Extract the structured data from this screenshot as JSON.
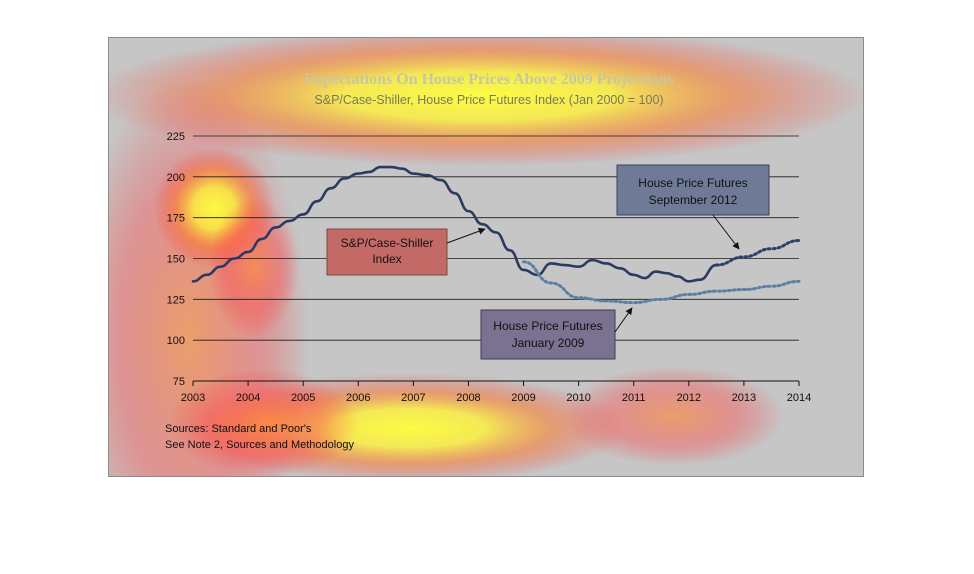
{
  "colors": {
    "main_line": "#2b3a60",
    "jan2009_line": "#5d7fa3",
    "sep2012_line": "#2c3f66",
    "grid": "#1b1b1b",
    "title": "#c8c8a0",
    "subtitle": "#7a7a58"
  },
  "chart_data": {
    "type": "line",
    "title": "Expectations On House Prices Above 2009 Projections",
    "subtitle": "S&P/Case-Shiller, House Price Futures Index (Jan 2000 = 100)",
    "xlabel": "",
    "ylabel": "",
    "xlim": [
      2003,
      2014
    ],
    "ylim": [
      75,
      225
    ],
    "xticks": [
      "2003",
      "2004",
      "2005",
      "2006",
      "2007",
      "2008",
      "2009",
      "2010",
      "2011",
      "2012",
      "2013",
      "2014"
    ],
    "yticks": [
      "75",
      "100",
      "125",
      "150",
      "175",
      "200",
      "225"
    ],
    "grid": true,
    "series": [
      {
        "name": "S&P/Case-Shiller Index",
        "style": "solid",
        "x": [
          2003.0,
          2003.25,
          2003.5,
          2003.75,
          2004.0,
          2004.25,
          2004.5,
          2004.75,
          2005.0,
          2005.25,
          2005.5,
          2005.75,
          2006.0,
          2006.2,
          2006.4,
          2006.6,
          2006.8,
          2007.0,
          2007.25,
          2007.5,
          2007.75,
          2008.0,
          2008.25,
          2008.5,
          2008.75,
          2009.0,
          2009.25,
          2009.5,
          2009.75,
          2010.0,
          2010.25,
          2010.5,
          2010.75,
          2011.0,
          2011.2,
          2011.4,
          2011.6,
          2011.8,
          2012.0,
          2012.2,
          2012.5
        ],
        "y": [
          136,
          140,
          145,
          150,
          154,
          162,
          169,
          173,
          177,
          185,
          193,
          199,
          202,
          203,
          206,
          206,
          205,
          202,
          201,
          198,
          190,
          179,
          171,
          166,
          155,
          143,
          140,
          147,
          146,
          145,
          149,
          147,
          144,
          140,
          138,
          142,
          141,
          139,
          136,
          137,
          146
        ]
      },
      {
        "name": "House Price Futures January 2009",
        "style": "dotted",
        "x": [
          2009.0,
          2009.5,
          2010.0,
          2010.5,
          2011.0,
          2011.5,
          2012.0,
          2012.5,
          2013.0,
          2013.5,
          2014.0
        ],
        "y": [
          148,
          135,
          126,
          124,
          123,
          125,
          128,
          130,
          131,
          133,
          136
        ]
      },
      {
        "name": "House Price Futures September 2012",
        "style": "dotted",
        "x": [
          2012.5,
          2013.0,
          2013.5,
          2014.0
        ],
        "y": [
          146,
          151,
          156,
          161
        ]
      }
    ],
    "annotations": [
      {
        "lines": [
          "S&P/Case-Shiller",
          "Index"
        ]
      },
      {
        "lines": [
          "House Price Futures",
          "September 2012"
        ]
      },
      {
        "lines": [
          "House Price Futures",
          "January 2009"
        ]
      }
    ],
    "sources": [
      "Sources:  Standard and Poor's",
      "See Note 2, Sources and Methodology"
    ]
  }
}
